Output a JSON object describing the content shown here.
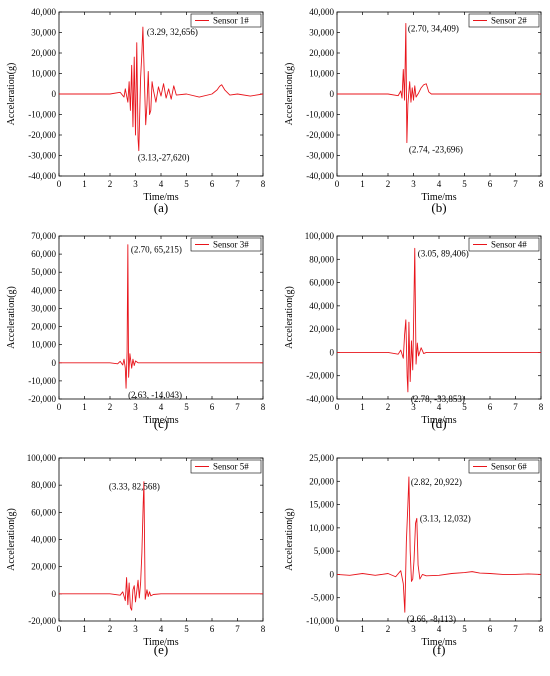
{
  "colors": {
    "signal": "#e8141b",
    "axis": "#000000",
    "legend_border": "#000000"
  },
  "chart_data": [
    {
      "type": "line",
      "panel_label": "(a)",
      "series": [
        {
          "name": "Sensor 1#",
          "x": [
            0,
            1,
            2,
            2.4,
            2.55,
            2.6,
            2.7,
            2.75,
            2.8,
            2.85,
            2.9,
            2.95,
            3.0,
            3.05,
            3.1,
            3.13,
            3.2,
            3.25,
            3.29,
            3.35,
            3.4,
            3.45,
            3.5,
            3.55,
            3.6,
            3.65,
            3.7,
            3.8,
            3.9,
            4.0,
            4.1,
            4.2,
            4.3,
            4.4,
            4.5,
            4.6,
            5.0,
            5.5,
            6.0,
            6.2,
            6.3,
            6.38,
            6.5,
            6.7,
            7.0,
            7.5,
            8
          ],
          "values": [
            0,
            0,
            0,
            800,
            -1500,
            2500,
            -4000,
            6000,
            -8000,
            14000,
            -16000,
            18000,
            -20000,
            25000,
            -22000,
            -27620,
            8000,
            20000,
            32656,
            6000,
            -15000,
            -5000,
            11000,
            -10000,
            -8000,
            6000,
            2000,
            -4000,
            3500,
            -1000,
            5000,
            -2000,
            2500,
            -2500,
            4000,
            -500,
            0,
            -1500,
            0,
            2000,
            3800,
            4500,
            2000,
            -500,
            0,
            -1000,
            0
          ]
        }
      ],
      "xlabel": "Time/ms",
      "ylabel": "Acceleration(g)",
      "xlim": [
        0,
        8
      ],
      "ylim": [
        -40000,
        40000
      ],
      "xticks": [
        0,
        1,
        2,
        3,
        4,
        5,
        6,
        7,
        8
      ],
      "yticks": [
        -40000,
        -30000,
        -20000,
        -10000,
        0,
        10000,
        20000,
        30000,
        40000
      ],
      "ytick_labels": [
        "-40,000",
        "-30,000",
        "-20,000",
        "-10,000",
        "0",
        "10,000",
        "20,000",
        "30,000",
        "40,000"
      ],
      "annotations": [
        {
          "text": "(3.29, 32,656)",
          "x": 3.29,
          "y": 32656
        },
        {
          "text": "(3.13,-27,620)",
          "x": 3.13,
          "y": -27620
        }
      ],
      "legend": "top-right"
    },
    {
      "type": "line",
      "panel_label": "(b)",
      "series": [
        {
          "name": "Sensor 2#",
          "x": [
            0,
            1,
            2,
            2.4,
            2.5,
            2.55,
            2.6,
            2.65,
            2.7,
            2.74,
            2.78,
            2.85,
            2.9,
            2.95,
            3.0,
            3.05,
            3.1,
            3.2,
            3.3,
            3.4,
            3.5,
            3.6,
            3.7,
            4.0,
            5,
            6,
            7,
            8
          ],
          "values": [
            0,
            0,
            0,
            -800,
            1500,
            -2000,
            12000,
            -3000,
            34409,
            -23696,
            -5000,
            6000,
            -4000,
            3000,
            -3000,
            4000,
            -1500,
            500,
            3000,
            4500,
            5000,
            1000,
            0,
            0,
            0,
            0,
            0,
            0
          ]
        }
      ],
      "xlabel": "Time/ms",
      "ylabel": "Acceleration(g)",
      "xlim": [
        0,
        8
      ],
      "ylim": [
        -40000,
        40000
      ],
      "xticks": [
        0,
        1,
        2,
        3,
        4,
        5,
        6,
        7,
        8
      ],
      "yticks": [
        -40000,
        -30000,
        -20000,
        -10000,
        0,
        10000,
        20000,
        30000,
        40000
      ],
      "ytick_labels": [
        "-40,000",
        "-30,000",
        "-20,000",
        "-10,000",
        "0",
        "10,000",
        "20,000",
        "30,000",
        "40,000"
      ],
      "annotations": [
        {
          "text": "(2.70, 34,409)",
          "x": 2.7,
          "y": 34409
        },
        {
          "text": "(2.74, -23,696)",
          "x": 2.74,
          "y": -23696
        }
      ],
      "legend": "top-right"
    },
    {
      "type": "line",
      "panel_label": "(c)",
      "series": [
        {
          "name": "Sensor 3#",
          "x": [
            0,
            1,
            2,
            2.3,
            2.4,
            2.5,
            2.55,
            2.6,
            2.63,
            2.67,
            2.7,
            2.73,
            2.78,
            2.85,
            2.9,
            2.95,
            3.0,
            3.1,
            3.5,
            4,
            5,
            6,
            7,
            8
          ],
          "values": [
            0,
            0,
            0,
            -600,
            800,
            -1200,
            2000,
            -3000,
            -14043,
            6000,
            65215,
            -8000,
            5000,
            -3000,
            2000,
            -1500,
            1000,
            0,
            0,
            0,
            0,
            0,
            0,
            0
          ]
        }
      ],
      "xlabel": "Time/ms",
      "ylabel": "Acceleration(g)",
      "xlim": [
        0,
        8
      ],
      "ylim": [
        -20000,
        70000
      ],
      "xticks": [
        0,
        1,
        2,
        3,
        4,
        5,
        6,
        7,
        8
      ],
      "yticks": [
        -20000,
        -10000,
        0,
        10000,
        20000,
        30000,
        40000,
        50000,
        60000,
        70000
      ],
      "ytick_labels": [
        "-20,000",
        "-10,000",
        "0",
        "10,000",
        "20,000",
        "30,000",
        "40,000",
        "50,000",
        "60,000",
        "70,000"
      ],
      "annotations": [
        {
          "text": "(2.70, 65,215)",
          "x": 2.7,
          "y": 65215
        },
        {
          "text": "(2.63, -14,043)",
          "x": 2.63,
          "y": -14043
        }
      ],
      "legend": "top-right"
    },
    {
      "type": "line",
      "panel_label": "(d)",
      "series": [
        {
          "name": "Sensor 4#",
          "x": [
            0,
            1,
            2,
            2.4,
            2.5,
            2.6,
            2.65,
            2.7,
            2.75,
            2.78,
            2.82,
            2.87,
            2.92,
            2.97,
            3.0,
            3.05,
            3.1,
            3.15,
            3.2,
            3.3,
            3.4,
            3.5,
            4,
            5,
            6,
            7,
            8
          ],
          "values": [
            0,
            0,
            0,
            -1500,
            2000,
            -5000,
            15000,
            28000,
            -20000,
            -33853,
            26000,
            -25000,
            10000,
            -15000,
            20000,
            89406,
            -10000,
            8000,
            -3000,
            4000,
            -1000,
            0,
            0,
            0,
            0,
            0,
            0
          ]
        }
      ],
      "xlabel": "Time/ms",
      "ylabel": "Acceleration(g)",
      "xlim": [
        0,
        8
      ],
      "ylim": [
        -40000,
        100000
      ],
      "xticks": [
        0,
        1,
        2,
        3,
        4,
        5,
        6,
        7,
        8
      ],
      "yticks": [
        -40000,
        -20000,
        0,
        20000,
        40000,
        60000,
        80000,
        100000
      ],
      "ytick_labels": [
        "-40,000",
        "-20,000",
        "0",
        "20,000",
        "40,000",
        "60,000",
        "80,000",
        "100,000"
      ],
      "annotations": [
        {
          "text": "(3.05, 89,406)",
          "x": 3.05,
          "y": 89406
        },
        {
          "text": "(2.78, -33,853)",
          "x": 2.78,
          "y": -33853
        }
      ],
      "legend": "top-right"
    },
    {
      "type": "line",
      "panel_label": "(e)",
      "series": [
        {
          "name": "Sensor 5#",
          "x": [
            0,
            1,
            2,
            2.4,
            2.5,
            2.6,
            2.65,
            2.7,
            2.75,
            2.8,
            2.85,
            2.9,
            2.95,
            3.0,
            3.05,
            3.1,
            3.15,
            3.2,
            3.25,
            3.3,
            3.33,
            3.38,
            3.45,
            3.5,
            3.55,
            3.6,
            3.7,
            4,
            5,
            6,
            7,
            8
          ],
          "values": [
            0,
            0,
            0,
            -1000,
            1500,
            -5000,
            12000,
            -8000,
            8000,
            -10000,
            -12000,
            3000,
            6000,
            -6000,
            2000,
            10000,
            -3000,
            8000,
            30000,
            65000,
            82568,
            -4000,
            3000,
            -2000,
            1500,
            -1500,
            -500,
            0,
            0,
            0,
            0,
            0
          ]
        }
      ],
      "xlabel": "Time/ms",
      "ylabel": "Acceleration(g)",
      "xlim": [
        0,
        8
      ],
      "ylim": [
        -20000,
        100000
      ],
      "xticks": [
        0,
        1,
        2,
        3,
        4,
        5,
        6,
        7,
        8
      ],
      "yticks": [
        -20000,
        0,
        20000,
        40000,
        60000,
        80000,
        100000
      ],
      "ytick_labels": [
        "-20,000",
        "0",
        "20,000",
        "40,000",
        "60,000",
        "80,000",
        "100,000"
      ],
      "annotations": [
        {
          "text": "(3.33, 82,568)",
          "x": 3.33,
          "y": 82568
        }
      ],
      "legend": "top-right"
    },
    {
      "type": "line",
      "panel_label": "(f)",
      "series": [
        {
          "name": "Sensor 6#",
          "x": [
            0,
            0.5,
            1,
            1.5,
            2,
            2.3,
            2.5,
            2.6,
            2.66,
            2.72,
            2.78,
            2.82,
            2.87,
            2.92,
            2.97,
            3.02,
            3.08,
            3.13,
            3.18,
            3.25,
            3.35,
            3.5,
            4,
            4.5,
            5,
            5.3,
            5.6,
            6,
            6.5,
            7,
            7.5,
            8
          ],
          "values": [
            0,
            -200,
            200,
            -200,
            200,
            -500,
            800,
            -2000,
            -8113,
            7000,
            15000,
            20922,
            5000,
            -1500,
            -1000,
            3000,
            11000,
            12032,
            2000,
            -1000,
            0,
            -300,
            -200,
            200,
            400,
            600,
            300,
            200,
            0,
            0,
            100,
            0
          ]
        }
      ],
      "xlabel": "Time/ms",
      "ylabel": "Acceleration(g)",
      "xlim": [
        0,
        8
      ],
      "ylim": [
        -10000,
        25000
      ],
      "xticks": [
        0,
        1,
        2,
        3,
        4,
        5,
        6,
        7,
        8
      ],
      "yticks": [
        -10000,
        -5000,
        0,
        5000,
        10000,
        15000,
        20000,
        25000
      ],
      "ytick_labels": [
        "-10,000",
        "-5,000",
        "0",
        "5,000",
        "10,000",
        "15,000",
        "20,000",
        "25,000"
      ],
      "annotations": [
        {
          "text": "(2.82, 20,922)",
          "x": 2.82,
          "y": 20922
        },
        {
          "text": "(3.13, 12,032)",
          "x": 3.13,
          "y": 12032
        },
        {
          "text": "(2.66, -8,113)",
          "x": 2.66,
          "y": -8113
        }
      ],
      "legend": "top-right"
    }
  ]
}
